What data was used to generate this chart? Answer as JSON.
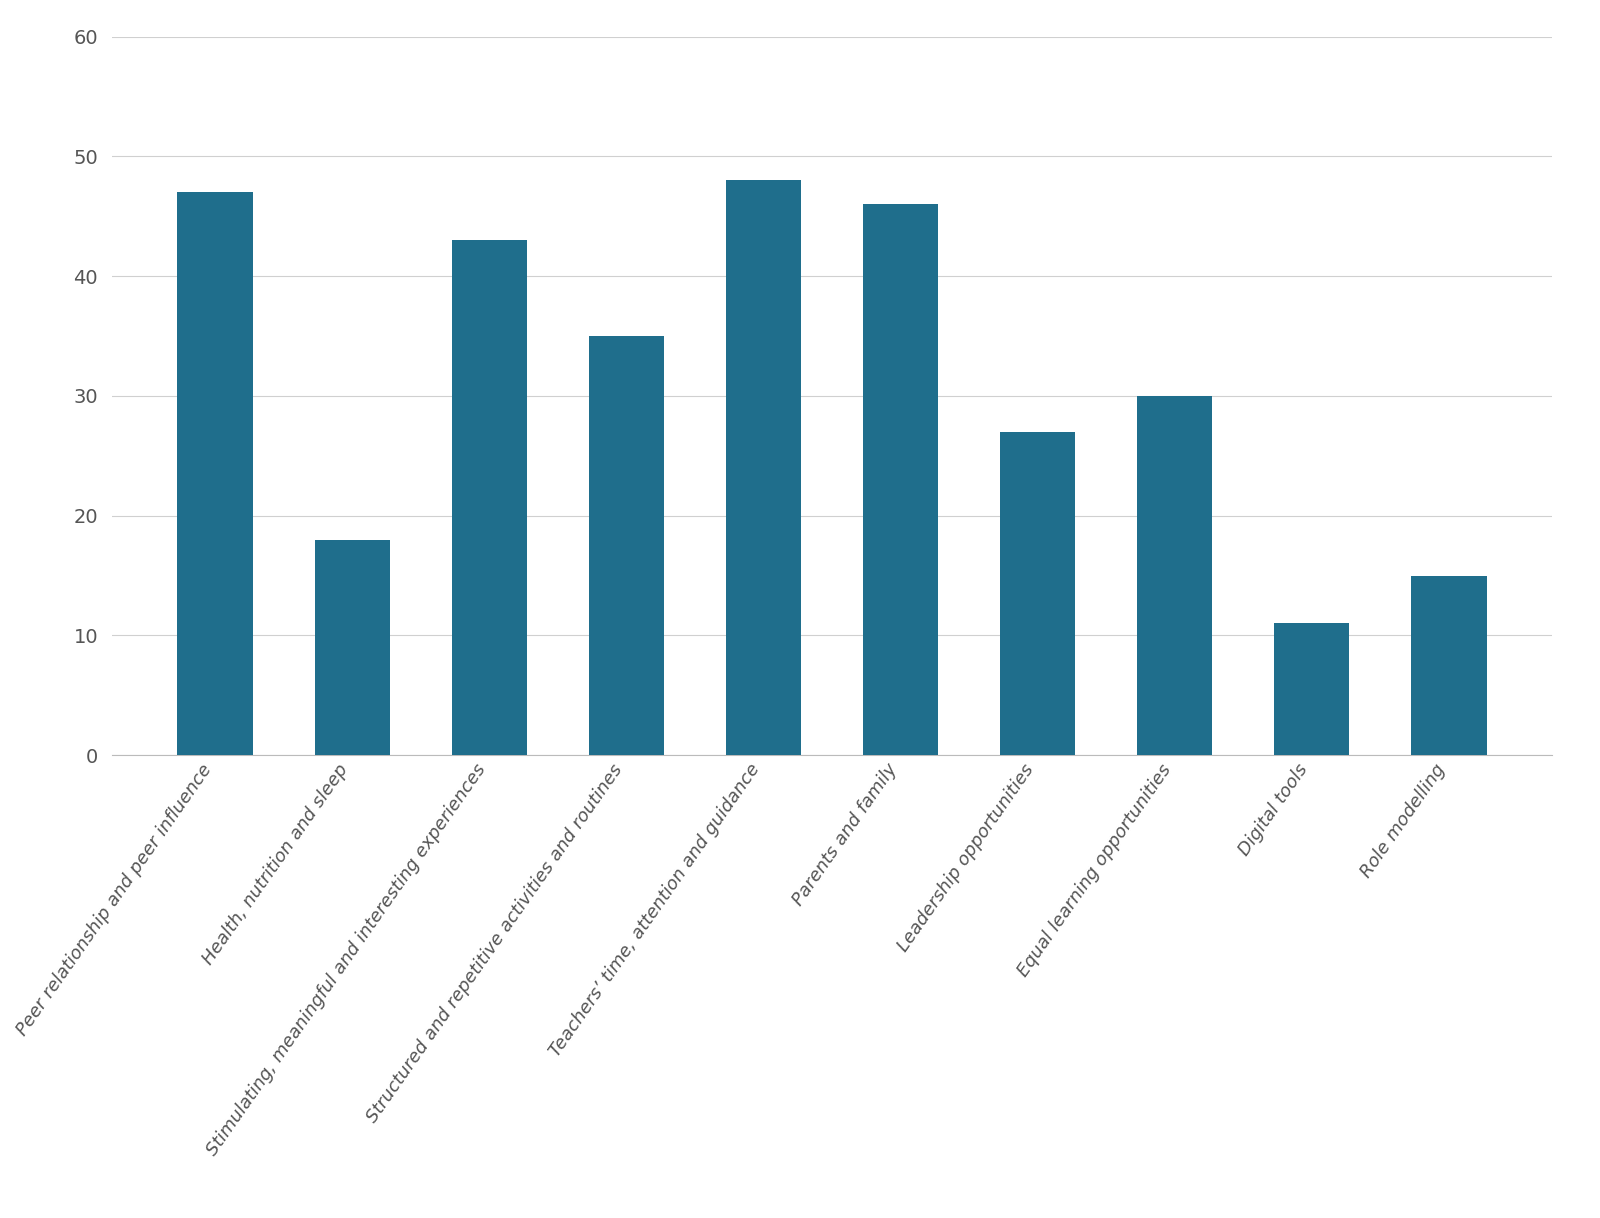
{
  "categories": [
    "Peer relationship and peer influence",
    "Health, nutrition and sleep",
    "Stimulating, meaningful and interesting experiences",
    "Structured and repetitive activities and routines",
    "Teachers’ time, attention and guidance",
    "Parents and family",
    "Leadership opportunities",
    "Equal learning opportunities",
    "Digital tools",
    "Role modelling"
  ],
  "values": [
    47,
    18,
    43,
    35,
    48,
    46,
    27,
    30,
    11,
    15
  ],
  "bar_color": "#1f6e8c",
  "ylim": [
    0,
    60
  ],
  "yticks": [
    0,
    10,
    20,
    30,
    40,
    50,
    60
  ],
  "background_color": "#ffffff",
  "grid_color": "#d0d0d0",
  "bar_width": 0.55,
  "tick_fontsize": 14,
  "label_fontsize": 13,
  "label_rotation": 55,
  "figsize": [
    16.0,
    12.18
  ],
  "dpi": 100
}
